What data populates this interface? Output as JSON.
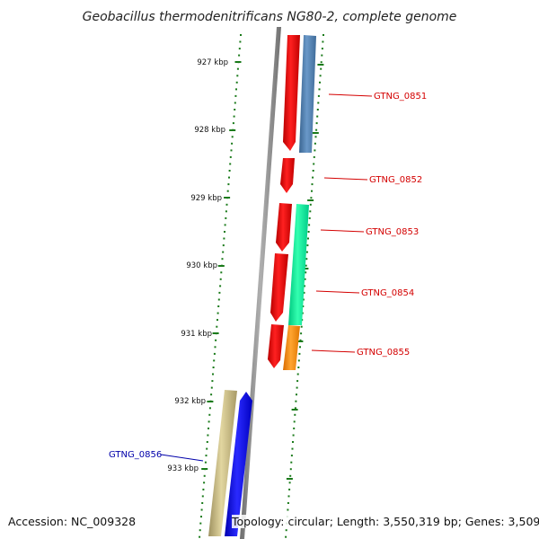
{
  "title": "Geobacillus thermodenitrificans NG80-2, complete genome",
  "accession_text": "Accession: NC_009328",
  "topology_text": "Topology: circular; Length: 3,550,319 bp; Genes: 3,509",
  "axis_labels": [
    "927 kbp",
    "928 kbp",
    "929 kbp",
    "930 kbp",
    "931 kbp",
    "932 kbp",
    "933 kbp"
  ],
  "genes": [
    {
      "id": "GTNG_0851",
      "strand": "+",
      "color": "#4f7fb0",
      "label_color": "#d40000"
    },
    {
      "id": "GTNG_0852",
      "strand": "-",
      "color": "#ff0000",
      "label_color": "#d40000"
    },
    {
      "id": "GTNG_0853",
      "strand": "+",
      "color": "#00ee99",
      "label_color": "#d40000"
    },
    {
      "id": "GTNG_0854",
      "strand": "+",
      "color": "#00ee99",
      "label_color": "#d40000"
    },
    {
      "id": "GTNG_0855",
      "strand": "+",
      "color": "#ff8800",
      "label_color": "#d40000"
    },
    {
      "id": "GTNG_0856",
      "strand": "+",
      "color": "#0000ff",
      "label_color": "#0000aa"
    }
  ],
  "colors": {
    "backbone": "#888888",
    "ticks": "#1a7a1a",
    "gene_red": "#ff0000",
    "gene_khaki": "#c8bb80"
  }
}
